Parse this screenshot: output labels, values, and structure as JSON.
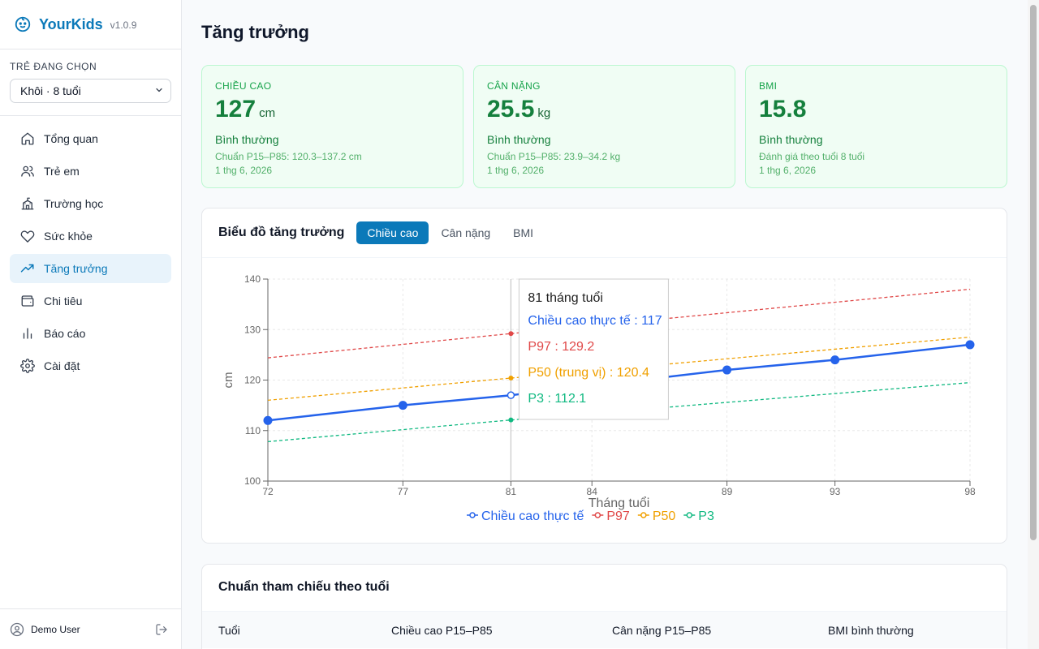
{
  "app": {
    "name": "YourKids",
    "version": "v1.0.9"
  },
  "child_selector": {
    "label": "Trẻ đang chọn",
    "value": "Khôi · 8 tuổi"
  },
  "nav": [
    {
      "label": "Tổng quan",
      "icon": "home-icon"
    },
    {
      "label": "Trẻ em",
      "icon": "users-icon"
    },
    {
      "label": "Trường học",
      "icon": "school-icon"
    },
    {
      "label": "Sức khỏe",
      "icon": "heart-icon"
    },
    {
      "label": "Tăng trưởng",
      "icon": "trending-up-icon",
      "active": true
    },
    {
      "label": "Chi tiêu",
      "icon": "wallet-icon"
    },
    {
      "label": "Báo cáo",
      "icon": "bar-chart-icon"
    },
    {
      "label": "Cài đặt",
      "icon": "gear-icon"
    }
  ],
  "user": {
    "name": "Demo User"
  },
  "page": {
    "title": "Tăng trưởng"
  },
  "stats": [
    {
      "title": "Chiều cao",
      "value": "127",
      "unit": "cm",
      "status": "Bình thường",
      "ref": "Chuẩn P15–P85: 120.3–137.2 cm",
      "date": "1 thg 6, 2026"
    },
    {
      "title": "Cân nặng",
      "value": "25.5",
      "unit": "kg",
      "status": "Bình thường",
      "ref": "Chuẩn P15–P85: 23.9–34.2 kg",
      "date": "1 thg 6, 2026"
    },
    {
      "title": "BMI",
      "value": "15.8",
      "unit": "",
      "status": "Bình thường",
      "ref": "Đánh giá theo tuổi 8 tuổi",
      "date": "1 thg 6, 2026"
    }
  ],
  "chart_card": {
    "title": "Biểu đồ tăng trưởng",
    "tabs": [
      "Chiều cao",
      "Cân nặng",
      "BMI"
    ],
    "active_tab": "Chiều cao"
  },
  "tooltip": {
    "title": "81 tháng tuổi",
    "lines": [
      "Chiều cao thực tế : 117",
      "P97 : 129.2",
      "P50 (trung vị) : 120.4",
      "P3 : 112.1"
    ]
  },
  "colors": {
    "accent": "#0b79b9",
    "actual": "#2563eb",
    "p97": "#e04848",
    "p50": "#f0a000",
    "p3": "#10b981",
    "ok_bg": "#f0fdf4",
    "ok_text": "#15803d"
  },
  "chart_data": {
    "type": "line",
    "xlabel": "Tháng tuổi",
    "ylabel": "cm",
    "x": [
      72,
      77,
      81,
      84,
      89,
      93,
      98
    ],
    "xlim": [
      72,
      98
    ],
    "ylim": [
      100,
      140
    ],
    "yticks": [
      100,
      110,
      120,
      130,
      140
    ],
    "grid": true,
    "legend": "bottom",
    "series": [
      {
        "name": "Chiều cao thực tế",
        "style": "solid",
        "points": [
          [
            72,
            112
          ],
          [
            77,
            115
          ],
          [
            81,
            117
          ],
          [
            89,
            122
          ],
          [
            93,
            124
          ],
          [
            98,
            127
          ]
        ]
      },
      {
        "name": "P97",
        "style": "dashed",
        "points": [
          [
            72,
            124.4
          ],
          [
            81,
            129.2
          ],
          [
            98,
            138
          ]
        ]
      },
      {
        "name": "P50",
        "style": "dashed",
        "points": [
          [
            72,
            116
          ],
          [
            81,
            120.4
          ],
          [
            98,
            128.5
          ]
        ]
      },
      {
        "name": "P3",
        "style": "dashed",
        "points": [
          [
            72,
            107.8
          ],
          [
            81,
            112.1
          ],
          [
            98,
            119.5
          ]
        ]
      }
    ],
    "highlight_x": 81
  },
  "reference_table": {
    "title": "Chuẩn tham chiếu theo tuổi",
    "columns": [
      "Tuổi",
      "Chiều cao P15–P85",
      "Cân nặng P15–P85",
      "BMI bình thường"
    ]
  }
}
